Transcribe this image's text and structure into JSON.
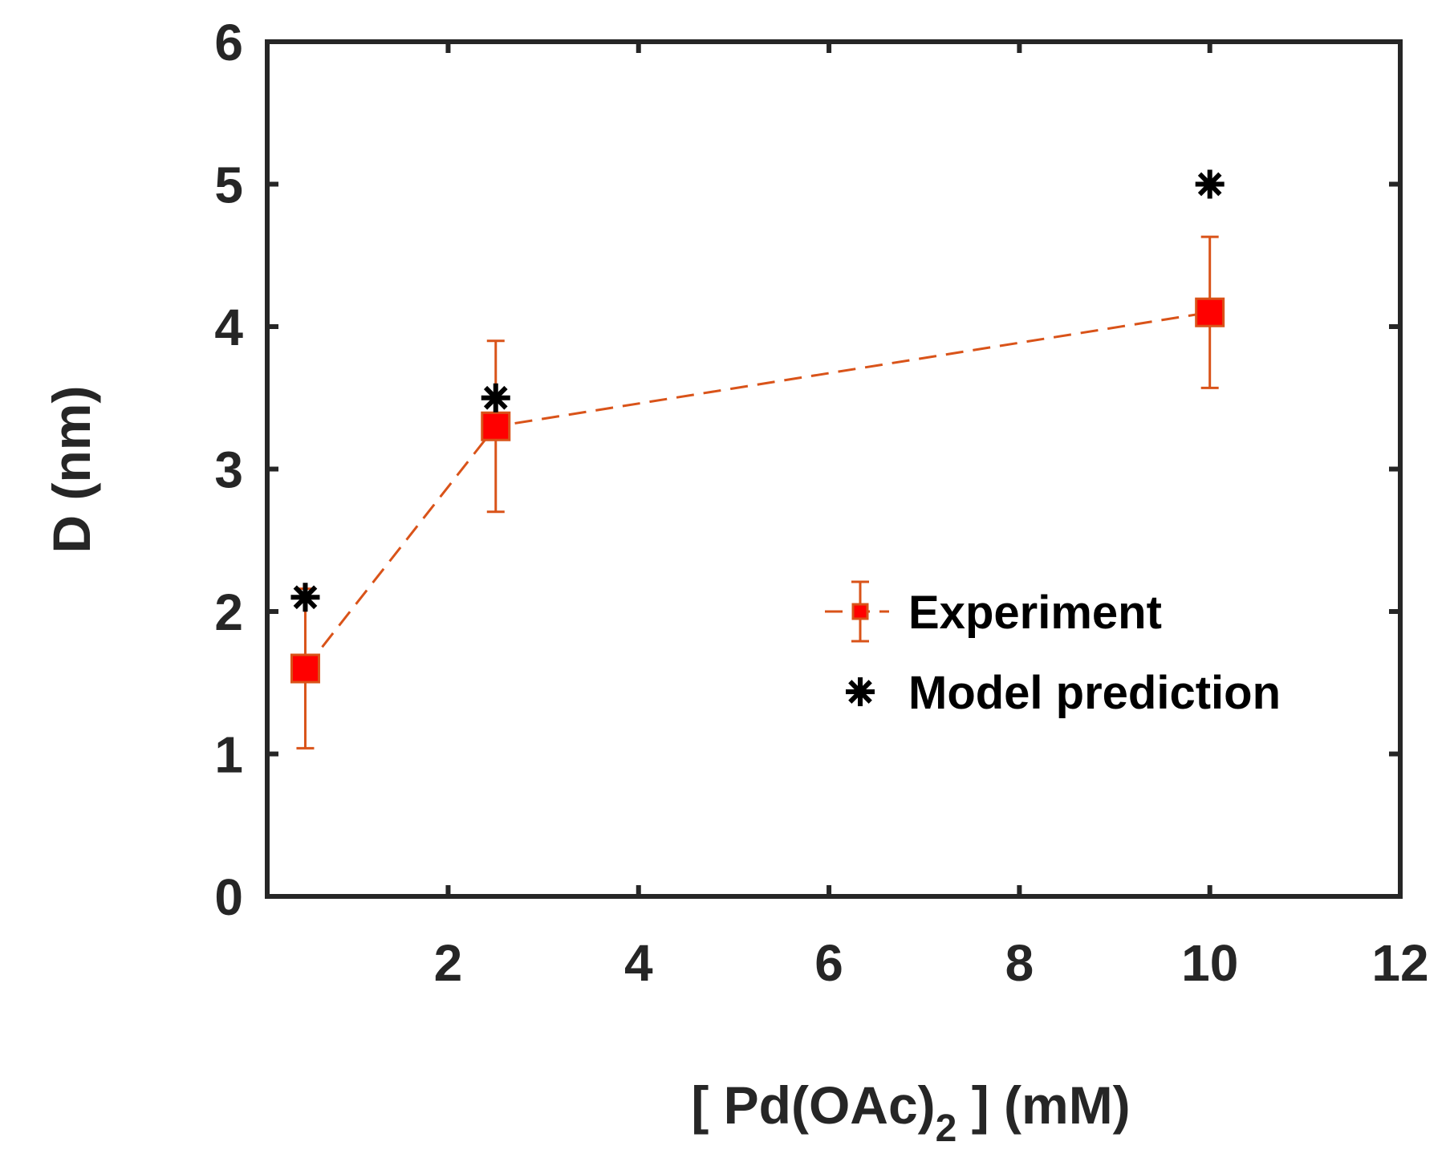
{
  "chart_data": {
    "type": "line",
    "title": "",
    "xlabel": {
      "main": "[ Pd(OAc)",
      "subscript": "2",
      "tail": " ] (mM)"
    },
    "ylabel": "D (nm)",
    "xlim": [
      0.1,
      12
    ],
    "ylim": [
      0,
      6
    ],
    "xticks": [
      2,
      4,
      6,
      8,
      10,
      12
    ],
    "xtick_labels": [
      "2",
      "4",
      "6",
      "8",
      "10",
      "12"
    ],
    "yticks": [
      0,
      1,
      2,
      3,
      4,
      5,
      6
    ],
    "ytick_labels": [
      "0",
      "1",
      "2",
      "3",
      "4",
      "5",
      "6"
    ],
    "grid": false,
    "legend_position": "center-right",
    "series": [
      {
        "name": "Experiment",
        "style": "dashed line with square markers and error bars",
        "color": "#d95319",
        "marker_fill": "#ff0000",
        "x": [
          0.5,
          2.5,
          10
        ],
        "y": [
          1.6,
          3.3,
          4.1
        ],
        "error": [
          0.56,
          0.6,
          0.53
        ]
      },
      {
        "name": "Model prediction",
        "style": "asterisk markers",
        "color": "#000000",
        "x": [
          0.5,
          2.5,
          10
        ],
        "y": [
          2.1,
          3.5,
          5.0
        ]
      }
    ]
  }
}
